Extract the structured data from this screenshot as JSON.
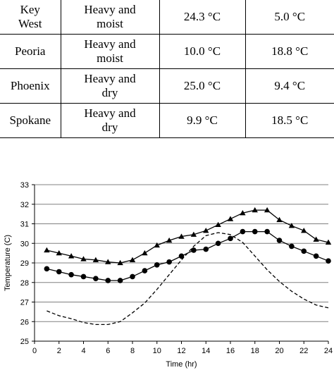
{
  "table": {
    "rows": [
      {
        "city": [
          "Key",
          "West"
        ],
        "type": [
          "Heavy and",
          "moist"
        ],
        "t1": "24.3 °C",
        "t2": "5.0 °C"
      },
      {
        "city": [
          "Peoria"
        ],
        "type": [
          "Heavy and",
          "moist"
        ],
        "t1": "10.0 °C",
        "t2": "18.8 °C"
      },
      {
        "city": [
          "Phoenix"
        ],
        "type": [
          "Heavy and",
          "dry"
        ],
        "t1": "25.0 °C",
        "t2": "9.4 °C"
      },
      {
        "city": [
          "Spokane"
        ],
        "type": [
          "Heavy and",
          "dry"
        ],
        "t1": "9.9 °C",
        "t2": "18.5 °C"
      }
    ]
  },
  "chart_data": {
    "type": "line",
    "title": "",
    "xlabel": "Time (hr)",
    "ylabel": "Temperature (C)",
    "xlim": [
      0,
      24
    ],
    "ylim": [
      25,
      33
    ],
    "xticks": [
      "0",
      "2",
      "4",
      "6",
      "8",
      "10",
      "12",
      "14",
      "16",
      "18",
      "20",
      "22",
      "24"
    ],
    "yticks": [
      "25",
      "26",
      "27",
      "28",
      "29",
      "30",
      "31",
      "32",
      "33"
    ],
    "grid": "horizontal",
    "legend": "none",
    "series": [
      {
        "marker": "triangle",
        "style": "solid",
        "color": "#000000",
        "x": [
          1,
          2,
          3,
          4,
          5,
          6,
          7,
          8,
          9,
          10,
          11,
          12,
          13,
          14,
          15,
          16,
          17,
          18,
          19,
          20,
          21,
          22,
          23,
          24
        ],
        "y": [
          29.65,
          29.5,
          29.35,
          29.2,
          29.15,
          29.05,
          29.0,
          29.15,
          29.5,
          29.9,
          30.15,
          30.35,
          30.45,
          30.65,
          30.95,
          31.25,
          31.55,
          31.7,
          31.7,
          31.2,
          30.9,
          30.65,
          30.2,
          30.05
        ]
      },
      {
        "marker": "circle",
        "style": "solid",
        "color": "#000000",
        "x": [
          1,
          2,
          3,
          4,
          5,
          6,
          7,
          8,
          9,
          10,
          11,
          12,
          13,
          14,
          15,
          16,
          17,
          18,
          19,
          20,
          21,
          22,
          23,
          24
        ],
        "y": [
          28.7,
          28.55,
          28.4,
          28.3,
          28.2,
          28.1,
          28.1,
          28.3,
          28.6,
          28.9,
          29.05,
          29.35,
          29.65,
          29.7,
          30.0,
          30.25,
          30.6,
          30.6,
          30.6,
          30.15,
          29.85,
          29.6,
          29.35,
          29.1
        ]
      },
      {
        "marker": "none",
        "style": "dashed",
        "color": "#000000",
        "x": [
          1,
          2,
          3,
          4,
          5,
          6,
          7,
          8,
          9,
          10,
          11,
          12,
          13,
          14,
          15,
          16,
          17,
          18,
          19,
          20,
          21,
          22,
          23,
          24
        ],
        "y": [
          26.55,
          26.3,
          26.15,
          25.95,
          25.85,
          25.85,
          26.0,
          26.45,
          26.95,
          27.65,
          28.4,
          29.15,
          29.85,
          30.4,
          30.55,
          30.45,
          30.05,
          29.35,
          28.65,
          28.05,
          27.55,
          27.15,
          26.85,
          26.7
        ]
      }
    ]
  }
}
